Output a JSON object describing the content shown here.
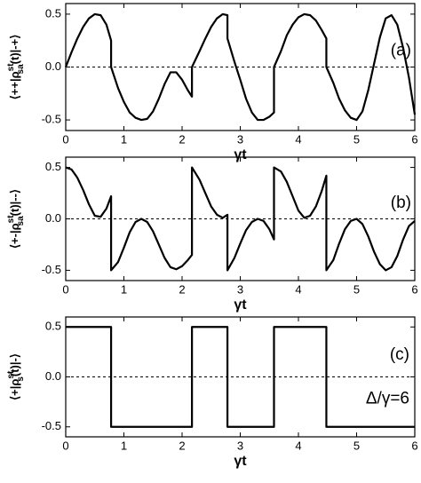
{
  "chart_data": [
    {
      "type": "line",
      "annotation": "(a)",
      "xlabel": "γt",
      "ylabel": {
        "main": "⟨++|ρ",
        "sub": "sa",
        "sup": "st",
        "rest": "(t)|-+⟩"
      },
      "xlim": [
        0,
        6
      ],
      "ylim": [
        -0.6,
        0.6
      ],
      "xticks": [
        0,
        1,
        2,
        3,
        4,
        5,
        6
      ],
      "yticks": [
        -0.5,
        {
          "value": 0,
          "label": "0.0"
        },
        0.5
      ],
      "zero_line": true,
      "color": "#000000",
      "x": [
        0,
        0.1,
        0.2,
        0.3,
        0.4,
        0.5,
        0.6,
        0.7,
        0.78,
        0.78,
        0.9,
        1.0,
        1.1,
        1.2,
        1.3,
        1.4,
        1.5,
        1.6,
        1.7,
        1.8,
        1.9,
        2.0,
        2.1,
        2.17,
        2.17,
        2.3,
        2.4,
        2.5,
        2.6,
        2.7,
        2.78,
        2.78,
        2.9,
        3.0,
        3.1,
        3.2,
        3.3,
        3.4,
        3.5,
        3.58,
        3.58,
        3.7,
        3.8,
        3.9,
        4.0,
        4.1,
        4.2,
        4.3,
        4.4,
        4.48,
        4.48,
        4.6,
        4.7,
        4.8,
        4.9,
        5.0,
        5.1,
        5.2,
        5.3,
        5.4,
        5.5,
        5.6,
        5.7,
        5.8,
        5.9,
        6.0
      ],
      "values": [
        0,
        0.14,
        0.27,
        0.38,
        0.46,
        0.5,
        0.49,
        0.4,
        0.25,
        0,
        -0.2,
        -0.33,
        -0.43,
        -0.48,
        -0.5,
        -0.49,
        -0.42,
        -0.3,
        -0.16,
        -0.05,
        -0.05,
        -0.12,
        -0.22,
        -0.28,
        0,
        0.15,
        0.27,
        0.38,
        0.46,
        0.5,
        0.49,
        0.27,
        0.05,
        -0.12,
        -0.3,
        -0.43,
        -0.5,
        -0.5,
        -0.47,
        -0.43,
        0,
        0.15,
        0.3,
        0.4,
        0.47,
        0.5,
        0.49,
        0.44,
        0.35,
        0.27,
        0,
        -0.15,
        -0.3,
        -0.41,
        -0.48,
        -0.5,
        -0.42,
        -0.22,
        0.03,
        0.28,
        0.46,
        0.49,
        0.4,
        0.18,
        -0.1,
        -0.45
      ]
    },
    {
      "type": "line",
      "annotation": "(b)",
      "xlabel": "γt",
      "ylabel": {
        "main": "⟨+-|ρ",
        "sub": "sa",
        "sup": "st",
        "rest": "(t)|--⟩"
      },
      "xlim": [
        0,
        6
      ],
      "ylim": [
        -0.6,
        0.6
      ],
      "xticks": [
        0,
        1,
        2,
        3,
        4,
        5,
        6
      ],
      "yticks": [
        -0.5,
        {
          "value": 0,
          "label": "0.0"
        },
        0.5
      ],
      "zero_line": true,
      "color": "#000000",
      "x": [
        0,
        0.1,
        0.2,
        0.3,
        0.4,
        0.5,
        0.6,
        0.7,
        0.78,
        0.78,
        0.9,
        1.0,
        1.1,
        1.2,
        1.3,
        1.4,
        1.5,
        1.6,
        1.7,
        1.8,
        1.9,
        2.0,
        2.1,
        2.17,
        2.17,
        2.3,
        2.4,
        2.5,
        2.6,
        2.7,
        2.78,
        2.78,
        2.9,
        3.0,
        3.1,
        3.2,
        3.3,
        3.4,
        3.5,
        3.58,
        3.58,
        3.7,
        3.8,
        3.9,
        4.0,
        4.1,
        4.2,
        4.3,
        4.4,
        4.48,
        4.48,
        4.6,
        4.7,
        4.8,
        4.9,
        5.0,
        5.1,
        5.2,
        5.3,
        5.4,
        5.5,
        5.6,
        5.7,
        5.8,
        5.9,
        6.0
      ],
      "values": [
        0.5,
        0.48,
        0.4,
        0.28,
        0.14,
        0.03,
        0.02,
        0.1,
        0.22,
        -0.5,
        -0.42,
        -0.28,
        -0.13,
        -0.03,
        0,
        -0.03,
        -0.12,
        -0.25,
        -0.38,
        -0.47,
        -0.49,
        -0.46,
        -0.4,
        -0.35,
        0.5,
        0.38,
        0.25,
        0.12,
        0.04,
        0.01,
        0.04,
        -0.5,
        -0.38,
        -0.24,
        -0.11,
        -0.03,
        0,
        -0.02,
        -0.1,
        -0.2,
        0.5,
        0.46,
        0.36,
        0.22,
        0.08,
        0.01,
        0.03,
        0.12,
        0.27,
        0.42,
        -0.5,
        -0.4,
        -0.24,
        -0.1,
        -0.02,
        0,
        -0.05,
        -0.17,
        -0.32,
        -0.44,
        -0.5,
        -0.47,
        -0.36,
        -0.2,
        -0.07,
        -0.02
      ]
    },
    {
      "type": "line",
      "annotation": "(c)",
      "annotation2": "Δ/γ=6",
      "xlabel": "γt",
      "ylabel": {
        "main": "⟨+|ρ",
        "sub": "s",
        "sup": "st",
        "rest": "(t)|-⟩"
      },
      "xlim": [
        0,
        6
      ],
      "ylim": [
        -0.6,
        0.6
      ],
      "xticks": [
        0,
        1,
        2,
        3,
        4,
        5,
        6
      ],
      "yticks": [
        -0.5,
        {
          "value": 0,
          "label": "0.0"
        },
        0.5
      ],
      "zero_line": true,
      "color": "#000000",
      "x": [
        0,
        0.78,
        0.78,
        2.17,
        2.17,
        2.78,
        2.78,
        3.58,
        3.58,
        4.48,
        4.48,
        6
      ],
      "values": [
        0.5,
        0.5,
        -0.5,
        -0.5,
        0.5,
        0.5,
        -0.5,
        -0.5,
        0.5,
        0.5,
        -0.5,
        -0.5
      ]
    }
  ]
}
